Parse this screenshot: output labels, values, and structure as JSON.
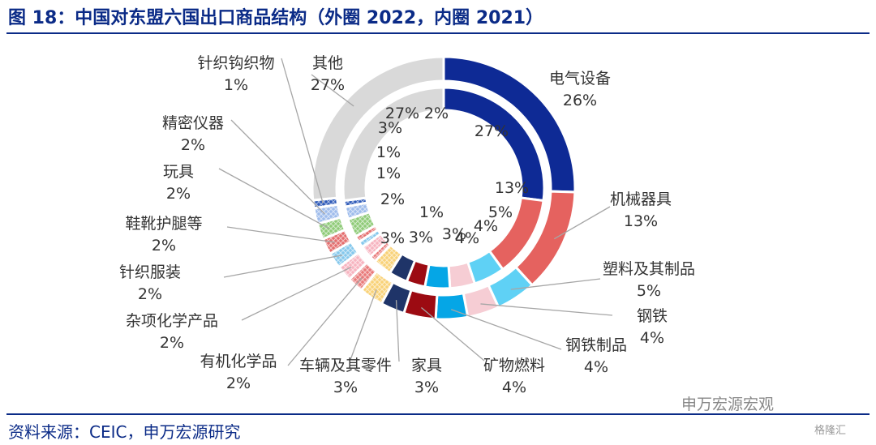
{
  "header": {
    "title": "图 18：中国对东盟六国出口商品结构（外圈 2022，内圈 2021）"
  },
  "footer": {
    "source": "资料来源：CEIC，申万宏源研究"
  },
  "watermark": {
    "text": "申万宏源宏观",
    "corner": "格隆汇"
  },
  "chart_data": {
    "type": "donut",
    "title": "图 18：中国对东盟六国出口商品结构（外圈 2022，内圈 2021）",
    "categories": [
      "电气设备",
      "机械器具",
      "塑料及其制品",
      "钢铁",
      "钢铁制品",
      "矿物燃料",
      "家具",
      "车辆及其零件",
      "有机化学品",
      "杂项化学产品",
      "针织服装",
      "鞋靴护腿等",
      "玩具",
      "精密仪器",
      "针织钩织物",
      "其他"
    ],
    "colors": [
      "#0e2a95",
      "#e5625f",
      "#5fd1f5",
      "#f6cdd4",
      "#05a6e6",
      "#9c0b12",
      "#1f3468",
      "#f9d278",
      "#e97a7a",
      "#f7b4c0",
      "#86c8ec",
      "#e46e6e",
      "#8fcb78",
      "#9ebcec",
      "#2e5ab8",
      "#d9d9d9"
    ],
    "series": [
      {
        "name": "2022",
        "ring": "outer",
        "values": [
          26,
          13,
          5,
          4,
          4,
          4,
          3,
          3,
          2,
          2,
          2,
          2,
          2,
          2,
          1,
          27
        ],
        "labels": [
          "26%",
          "13%",
          "5%",
          "4%",
          "4%",
          "4%",
          "3%",
          "3%",
          "2%",
          "2%",
          "2%",
          "2%",
          "2%",
          "2%",
          "1%",
          "27%"
        ]
      },
      {
        "name": "2021",
        "ring": "inner",
        "values": [
          27,
          13,
          5,
          4,
          4,
          3,
          3,
          3,
          1,
          2,
          1,
          1,
          3,
          2,
          1,
          27
        ],
        "labels": [
          "27%",
          "13%",
          "5%",
          "4%",
          "4%",
          "3%",
          "3%",
          "3%",
          "1%",
          "2%",
          "1%",
          "1%",
          "3%",
          "2%",
          "1%",
          "27%"
        ]
      }
    ],
    "legend": "none",
    "labeling": "outer ring labelled outside with leader lines; inner ring percentages inside"
  }
}
